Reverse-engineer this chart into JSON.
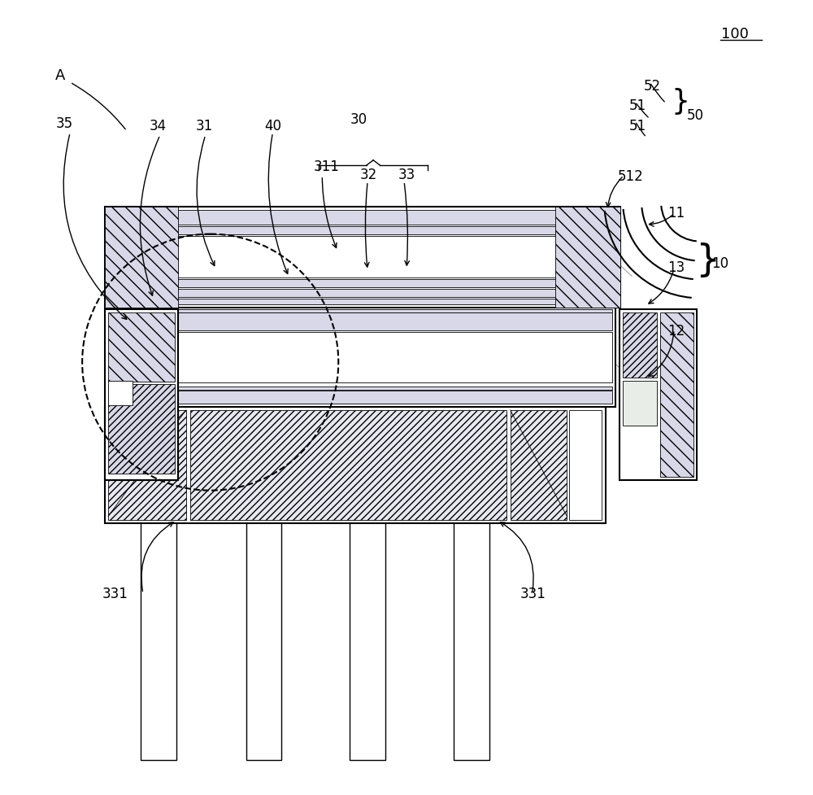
{
  "fig_width": 10.0,
  "fig_height": 9.77,
  "bg_color": "#ffffff",
  "lc": "#000000",
  "gc": "#d8d8e8",
  "gc2": "#e8e8f0",
  "lw": 1.0,
  "lw_k": 1.5,
  "lw_t": 0.6
}
